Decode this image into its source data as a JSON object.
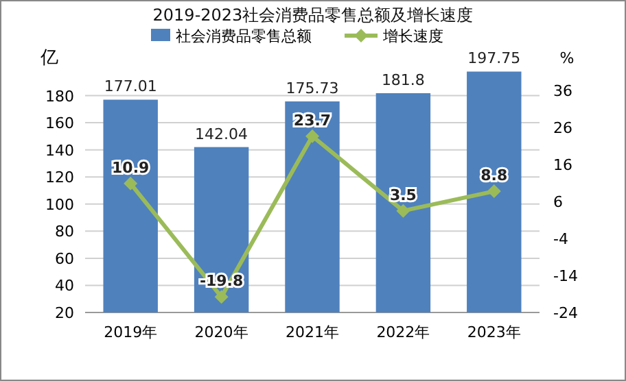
{
  "chart_data": {
    "type": "bar",
    "title": "2019-2023社会消费品零售总额及增长速度",
    "categories": [
      "2019年",
      "2020年",
      "2021年",
      "2022年",
      "2023年"
    ],
    "series": [
      {
        "name": "社会消费品零售总额",
        "color": "#4f81bd",
        "values": [
          177.01,
          142.04,
          175.73,
          181.8,
          197.75
        ]
      },
      {
        "name": "增长速度",
        "type": "line",
        "axis": "y2",
        "color": "#9bbb59",
        "values": [
          10.9,
          -19.8,
          23.7,
          3.5,
          8.8
        ]
      }
    ],
    "ylabel": "亿",
    "y2label": "%",
    "ylim": [
      20,
      200
    ],
    "yticks": [
      20,
      40,
      60,
      80,
      100,
      120,
      140,
      160,
      180
    ],
    "y2lim": [
      -24,
      42
    ],
    "y2ticks": [
      -24,
      -14,
      -4,
      6,
      16,
      26,
      36
    ],
    "grid": "y",
    "legend": "top",
    "marker": "diamond",
    "line_style": "solid",
    "data_labels": true
  }
}
